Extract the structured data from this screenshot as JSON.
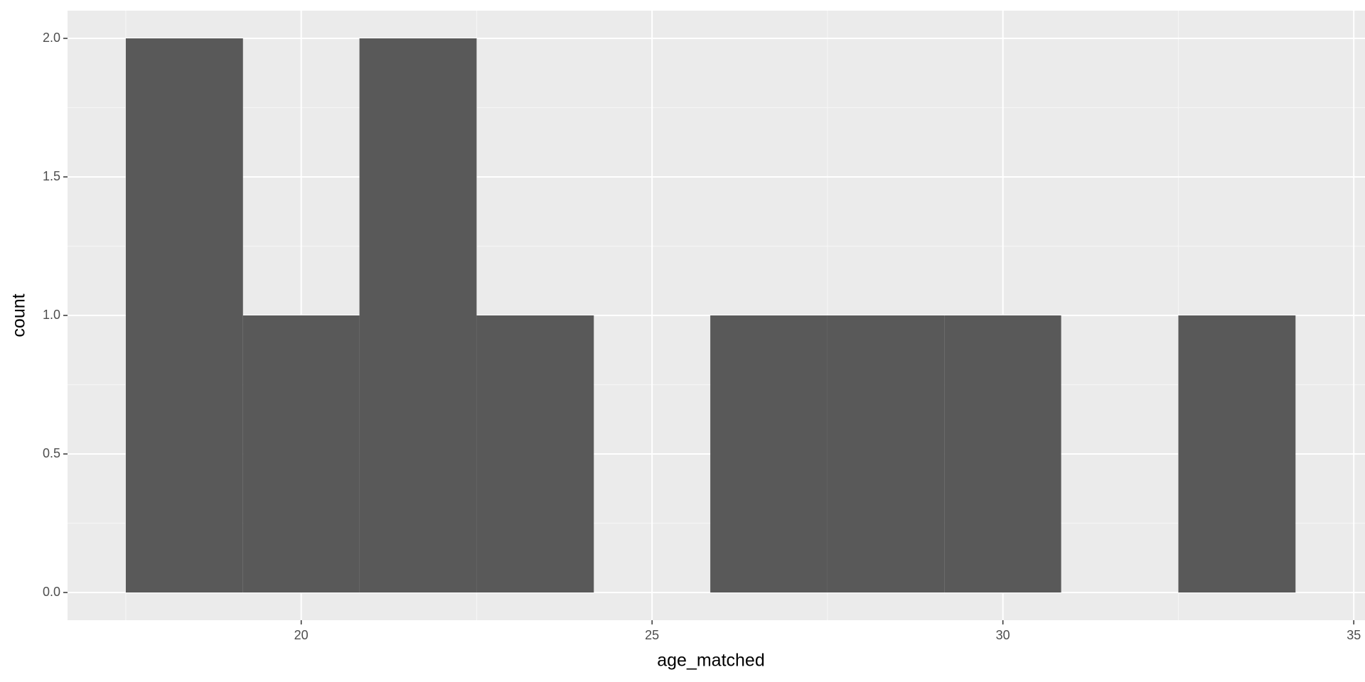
{
  "chart_data": {
    "type": "histogram",
    "x_label": "age_matched",
    "y_label": "count",
    "bins": [
      17.5,
      19.17,
      20.83,
      22.5,
      24.17,
      25.83,
      27.5,
      29.17,
      30.83,
      32.5,
      34.17
    ],
    "counts": [
      2,
      1,
      2,
      1,
      0,
      1,
      1,
      1,
      0,
      1
    ],
    "color": "#595959",
    "xlim": [
      16.67,
      35.16
    ],
    "ylim": [
      -0.1,
      2.1
    ],
    "xticks": [
      20,
      25,
      30,
      35
    ],
    "yticks": [
      {
        "value": 0,
        "label": "0.0"
      },
      0.5,
      {
        "value": 1,
        "label": "1.0"
      },
      1.5,
      {
        "value": 2,
        "label": "2.0"
      }
    ],
    "grid": true
  }
}
